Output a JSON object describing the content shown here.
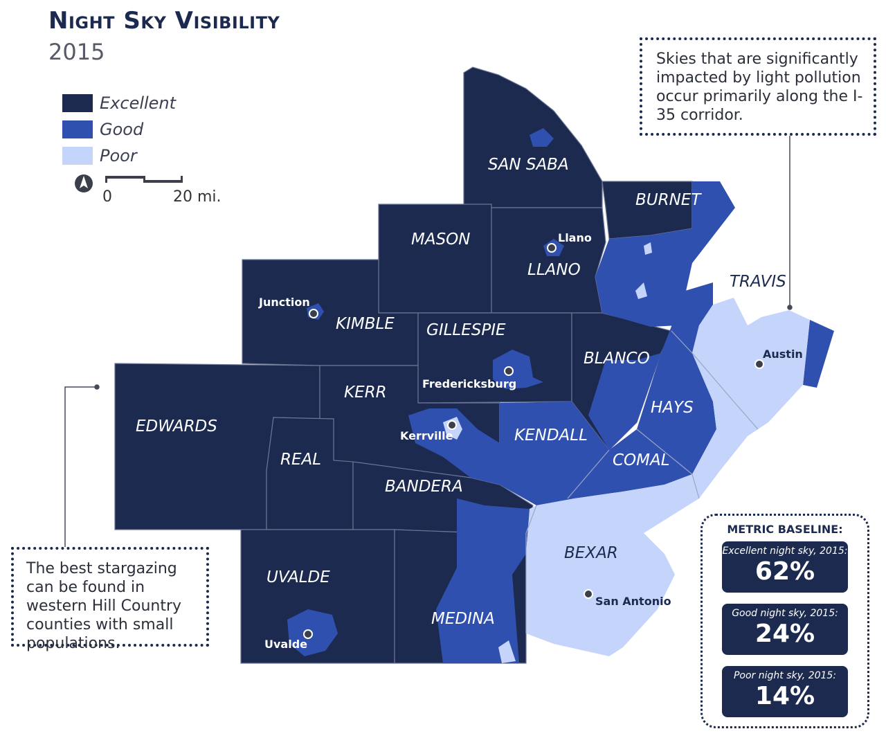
{
  "title": "Night Sky Visibility",
  "subtitle": "2015",
  "legend": [
    {
      "label": "Excellent",
      "color": "#1b2a4e"
    },
    {
      "label": "Good",
      "color": "#3050b0"
    },
    {
      "label": "Poor",
      "color": "#c5d4fb"
    }
  ],
  "scale": {
    "zero": "0",
    "twenty": "20 mi."
  },
  "icons": {
    "north": "north-arrow-icon"
  },
  "counties": {
    "san_saba": "SAN SABA",
    "burnet": "BURNET",
    "mason": "MASON",
    "llano": "LLANO",
    "travis": "TRAVIS",
    "kimble": "KIMBLE",
    "gillespie": "GILLESPIE",
    "blanco": "BLANCO",
    "kerr": "KERR",
    "edwards": "EDWARDS",
    "hays": "HAYS",
    "kendall": "KENDALL",
    "real": "REAL",
    "comal": "COMAL",
    "bandera": "BANDERA",
    "bexar": "BEXAR",
    "uvalde": "UVALDE",
    "medina": "MEDINA"
  },
  "cities": {
    "llano": "Llano",
    "junction": "Junction",
    "austin": "Austin",
    "fredericksburg": "Fredericksburg",
    "kerrville": "Kerrville",
    "san_antonio": "San Antonio",
    "uvalde": "Uvalde"
  },
  "callouts": {
    "right": "Skies that are significantly impacted by light pollution occur primarily along the I-35 corridor.",
    "left": "The best stargazing can be found in western Hill Country counties with small populations."
  },
  "baseline": {
    "title": "METRIC BASELINE:",
    "metrics": [
      {
        "label": "Excellent night sky, 2015:",
        "value": "62%"
      },
      {
        "label": "Good night sky, 2015:",
        "value": "24%"
      },
      {
        "label": "Poor night sky, 2015:",
        "value": "14%"
      }
    ]
  }
}
